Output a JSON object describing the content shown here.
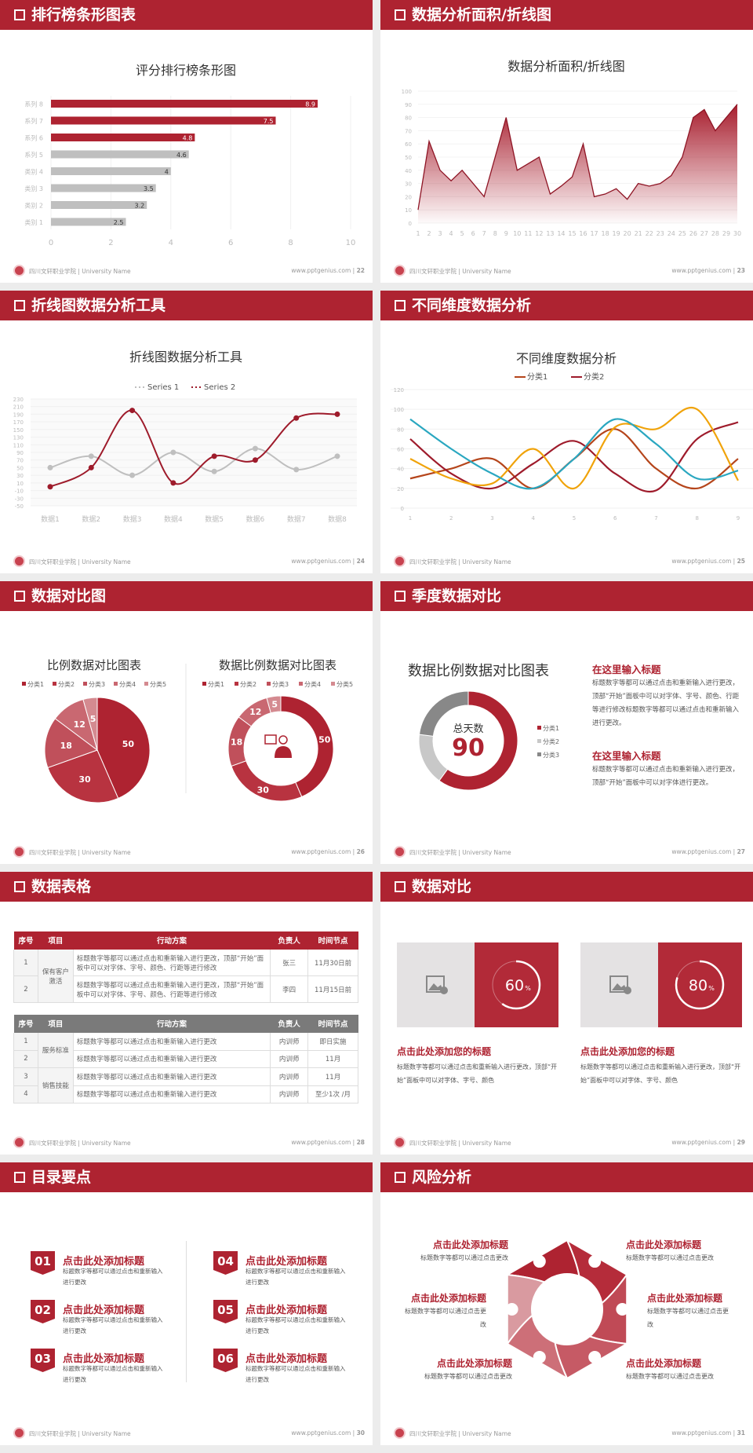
{
  "footer": {
    "school": "四川文轩职业学院 | University Name",
    "site": "www.pptgenius.com"
  },
  "colors": {
    "brand": "#ae2331",
    "gray": "#bfbfbf",
    "dark_gray": "#7a7a7a"
  },
  "slides": [
    {
      "header": "排行榜条形图表",
      "page": "22"
    },
    {
      "header": "数据分析面积/折线图",
      "page": "23"
    },
    {
      "header": "折线图数据分析工具",
      "page": "24"
    },
    {
      "header": "不同维度数据分析",
      "page": "25"
    },
    {
      "header": "数据对比图",
      "page": "26"
    },
    {
      "header": "季度数据对比",
      "page": "27"
    },
    {
      "header": "数据表格",
      "page": "28"
    },
    {
      "header": "数据对比",
      "page": "29"
    },
    {
      "header": "目录要点",
      "page": "30"
    },
    {
      "header": "风险分析",
      "page": "31"
    }
  ],
  "chart_data": [
    {
      "type": "bar",
      "title": "评分排行榜条形图",
      "categories": [
        "系列 8",
        "系列 7",
        "系列 6",
        "系列 5",
        "类别 4",
        "类别 3",
        "类别 2",
        "类别 1"
      ],
      "values": [
        8.9,
        7.5,
        4.8,
        4.6,
        4,
        3.5,
        3.2,
        2.5
      ],
      "highlight_top": 3,
      "xlim": [
        0,
        10
      ],
      "xticks": [
        0,
        2,
        4,
        6,
        8,
        10
      ],
      "grid": true
    },
    {
      "type": "area",
      "title": "数据分析面积/折线图",
      "x": [
        1,
        2,
        3,
        4,
        5,
        6,
        7,
        8,
        9,
        10,
        11,
        12,
        13,
        14,
        15,
        16,
        17,
        18,
        19,
        20,
        21,
        22,
        23,
        24,
        25,
        26,
        27,
        28,
        29,
        30
      ],
      "values": [
        10,
        62,
        40,
        32,
        40,
        30,
        20,
        50,
        80,
        40,
        45,
        50,
        22,
        28,
        35,
        60,
        20,
        22,
        26,
        18,
        30,
        28,
        30,
        36,
        50,
        80,
        86,
        70,
        80,
        90
      ],
      "ylim": [
        0,
        100
      ],
      "yticks": [
        0,
        10,
        20,
        30,
        40,
        50,
        60,
        70,
        80,
        90,
        100
      ],
      "grid": true
    },
    {
      "type": "line",
      "title": "折线图数据分析工具",
      "categories": [
        "数据1",
        "数据2",
        "数据3",
        "数据4",
        "数据5",
        "数据6",
        "数据7",
        "数据8"
      ],
      "series": [
        {
          "name": "Series 1",
          "color": "#bfbfbf",
          "values": [
            50,
            80,
            30,
            90,
            40,
            100,
            45,
            80
          ]
        },
        {
          "name": "Series 2",
          "color": "#9e1b2b",
          "values": [
            0,
            50,
            200,
            10,
            80,
            70,
            180,
            190
          ]
        }
      ],
      "ylim": [
        -50,
        230
      ],
      "yticks": [
        230,
        210,
        190,
        170,
        150,
        130,
        110,
        90,
        70,
        50,
        30,
        10,
        -10,
        -30,
        -50
      ],
      "legend": "top",
      "smooth": true
    },
    {
      "type": "line",
      "title": "不同维度数据分析",
      "categories": [
        "1",
        "2",
        "3",
        "4",
        "5",
        "6",
        "7",
        "8",
        "9"
      ],
      "series": [
        {
          "name": "分类1",
          "color": "#b5451b",
          "values": [
            30,
            40,
            50,
            20,
            50,
            80,
            40,
            20,
            50
          ]
        },
        {
          "name": "分类2",
          "color": "#9e1b2b",
          "values": [
            70,
            35,
            20,
            45,
            68,
            35,
            18,
            70,
            87
          ]
        },
        {
          "color": "#f0a30a",
          "values": [
            50,
            30,
            25,
            60,
            20,
            82,
            80,
            100,
            28
          ]
        },
        {
          "color": "#2aa7c0",
          "values": [
            90,
            60,
            35,
            20,
            50,
            90,
            65,
            30,
            38
          ]
        }
      ],
      "ylim": [
        0,
        120
      ],
      "yticks": [
        0,
        20,
        40,
        60,
        80,
        100,
        120
      ],
      "legend": "top",
      "smooth": true
    },
    {
      "type": "pie",
      "title": "比例数据对比图表",
      "categories": [
        "分类1",
        "分类2",
        "分类3",
        "分类4",
        "分类5"
      ],
      "values": [
        50,
        30,
        18,
        12,
        5
      ],
      "colors": [
        "#ae2331",
        "#b83340",
        "#c0505b",
        "#c96871",
        "#d48a90"
      ],
      "legend": "top"
    },
    {
      "type": "pie",
      "donut": true,
      "title": "数据比例数据对比图表",
      "categories": [
        "分类1",
        "分类2",
        "分类3",
        "分类4",
        "分类5"
      ],
      "values": [
        50,
        30,
        18,
        12,
        5
      ],
      "colors": [
        "#ae2331",
        "#b83340",
        "#c0505b",
        "#c96871",
        "#d48a90"
      ],
      "legend": "top",
      "center_icon": "presenter-icon"
    },
    {
      "type": "pie",
      "donut": true,
      "title": "数据比例数据对比图表",
      "categories": [
        "分类1",
        "分类2",
        "分类3"
      ],
      "values": [
        60,
        17,
        23
      ],
      "colors": [
        "#ae2331",
        "#c8c8c8",
        "#888888"
      ],
      "legend": "right",
      "center_label": "总天数",
      "center_value": "90"
    }
  ],
  "quarter": {
    "blocks": [
      {
        "title": "在这里输入标题",
        "text": "标题数字等都可以通过点击和重新输入进行更改，顶部“开始”面板中可以对字体、字号、颜色、行距等进行修改标题数字等都可以通过点击和重新输入进行更改。"
      },
      {
        "title": "在这里输入标题",
        "text": "标题数字等都可以通过点击和重新输入进行更改，顶部“开始”面板中可以对字体进行更改。"
      }
    ]
  },
  "tables": {
    "headers": [
      "序号",
      "项目",
      "行动方案",
      "负责人",
      "时间节点"
    ],
    "table1": {
      "group": "保有客户激活",
      "rows": [
        [
          "1",
          "标题数字等都可以通过点击和重新输入进行更改，顶部“开始”面板中可以对字体、字号、颜色、行距等进行修改",
          "张三",
          "11月30日前"
        ],
        [
          "2",
          "标题数字等都可以通过点击和重新输入进行更改，顶部“开始”面板中可以对字体、字号、颜色、行距等进行修改",
          "李四",
          "11月15日前"
        ]
      ]
    },
    "table2": {
      "groups": [
        "服务标准",
        "销售技能"
      ],
      "rows": [
        [
          "1",
          "标题数字等都可以通过点击和重新输入进行更改",
          "内训师",
          "即日实施"
        ],
        [
          "2",
          "标题数字等都可以通过点击和重新输入进行更改",
          "内训师",
          "11月"
        ],
        [
          "3",
          "标题数字等都可以通过点击和重新输入进行更改",
          "内训师",
          "11月"
        ],
        [
          "4",
          "标题数字等都可以通过点击和重新输入进行更改",
          "内训师",
          "至少1次 /月"
        ]
      ]
    }
  },
  "compare": {
    "cards": [
      {
        "percent": 60,
        "value": "60",
        "unit": "%",
        "title": "点击此处添加您的标题",
        "text": "标题数字等都可以通过点击和重新输入进行更改，顶部“开始”面板中可以对字体、字号、颜色",
        "image_icon": "image-add-icon"
      },
      {
        "percent": 80,
        "value": "80",
        "unit": "%",
        "title": "点击此处添加您的标题",
        "text": "标题数字等都可以通过点击和重新输入进行更改，顶部“开始”面板中可以对字体、字号、颜色",
        "image_icon": "image-add-icon"
      }
    ]
  },
  "toc": {
    "items": [
      {
        "num": "01",
        "title": "点击此处添加标题",
        "text": "标题数字等都可以通过点击和重新输入进行更改"
      },
      {
        "num": "02",
        "title": "点击此处添加标题",
        "text": "标题数字等都可以通过点击和重新输入进行更改"
      },
      {
        "num": "03",
        "title": "点击此处添加标题",
        "text": "标题数字等都可以通过点击和重新输入进行更改"
      },
      {
        "num": "04",
        "title": "点击此处添加标题",
        "text": "标题数字等都可以通过点击和重新输入进行更改"
      },
      {
        "num": "05",
        "title": "点击此处添加标题",
        "text": "标题数字等都可以通过点击和重新输入进行更改"
      },
      {
        "num": "06",
        "title": "点击此处添加标题",
        "text": "标题数字等都可以通过点击和重新输入进行更改"
      }
    ]
  },
  "risk": {
    "items": [
      {
        "title": "点击此处添加标题",
        "text": "标题数字等都可以通过点击更改",
        "icon": "money-bag-icon"
      },
      {
        "title": "点击此处添加标题",
        "text": "标题数字等都可以通过点击更改",
        "icon": "coins-icon"
      },
      {
        "title": "点击此处添加标题",
        "text": "标题数字等都可以通过点击更改",
        "icon": "hand-money-icon"
      },
      {
        "title": "点击此处添加标题",
        "text": "标题数字等都可以通过点击更改",
        "icon": "users-icon"
      },
      {
        "title": "点击此处添加标题",
        "text": "标题数字等都可以通过点击更改",
        "icon": "building-icon"
      },
      {
        "title": "点击此处添加标题",
        "text": "标题数字等都可以通过点击更改",
        "icon": "pie-chart-icon"
      }
    ]
  }
}
